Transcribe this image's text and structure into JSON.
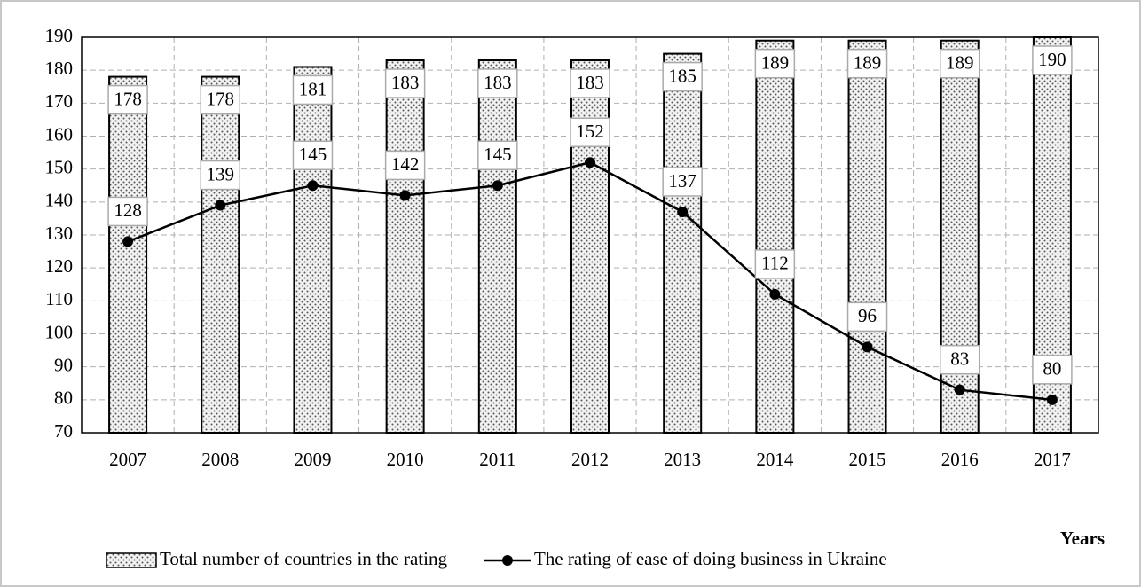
{
  "chart_data": {
    "type": "bar",
    "categories": [
      "2007",
      "2008",
      "2009",
      "2010",
      "2011",
      "2012",
      "2013",
      "2014",
      "2015",
      "2016",
      "2017"
    ],
    "series": [
      {
        "name": "Total number of countries in the rating",
        "type": "bar",
        "color": "#555555",
        "values": [
          178,
          178,
          181,
          183,
          183,
          183,
          185,
          189,
          189,
          189,
          190
        ]
      },
      {
        "name": "The rating of ease of doing business in Ukraine",
        "type": "line",
        "color": "#000000",
        "values": [
          128,
          139,
          145,
          142,
          145,
          152,
          137,
          112,
          96,
          83,
          80
        ]
      }
    ],
    "x_label": "Years",
    "ylim": [
      70,
      190
    ],
    "yticks": [
      70,
      80,
      90,
      100,
      110,
      120,
      130,
      140,
      150,
      160,
      170,
      180,
      190
    ],
    "grid": true,
    "legend": "bottom"
  }
}
